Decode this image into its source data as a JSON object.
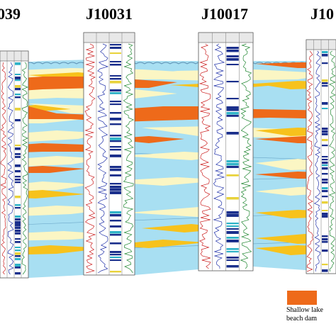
{
  "wells": [
    {
      "name": "039"
    },
    {
      "name": "J10031"
    },
    {
      "name": "J10017"
    },
    {
      "name": "J10"
    }
  ],
  "legend": {
    "label_line1": "Shallow lake",
    "label_line2": "beach dam",
    "color": "#ee6a1a"
  },
  "colors": {
    "lake_water": "#a8dff2",
    "beach_bar": "#fbf6c4",
    "beach_dam": "#ee6a1a",
    "sand_sheet": "#f7c21c",
    "lithology_dark": "#1a2f8c"
  }
}
